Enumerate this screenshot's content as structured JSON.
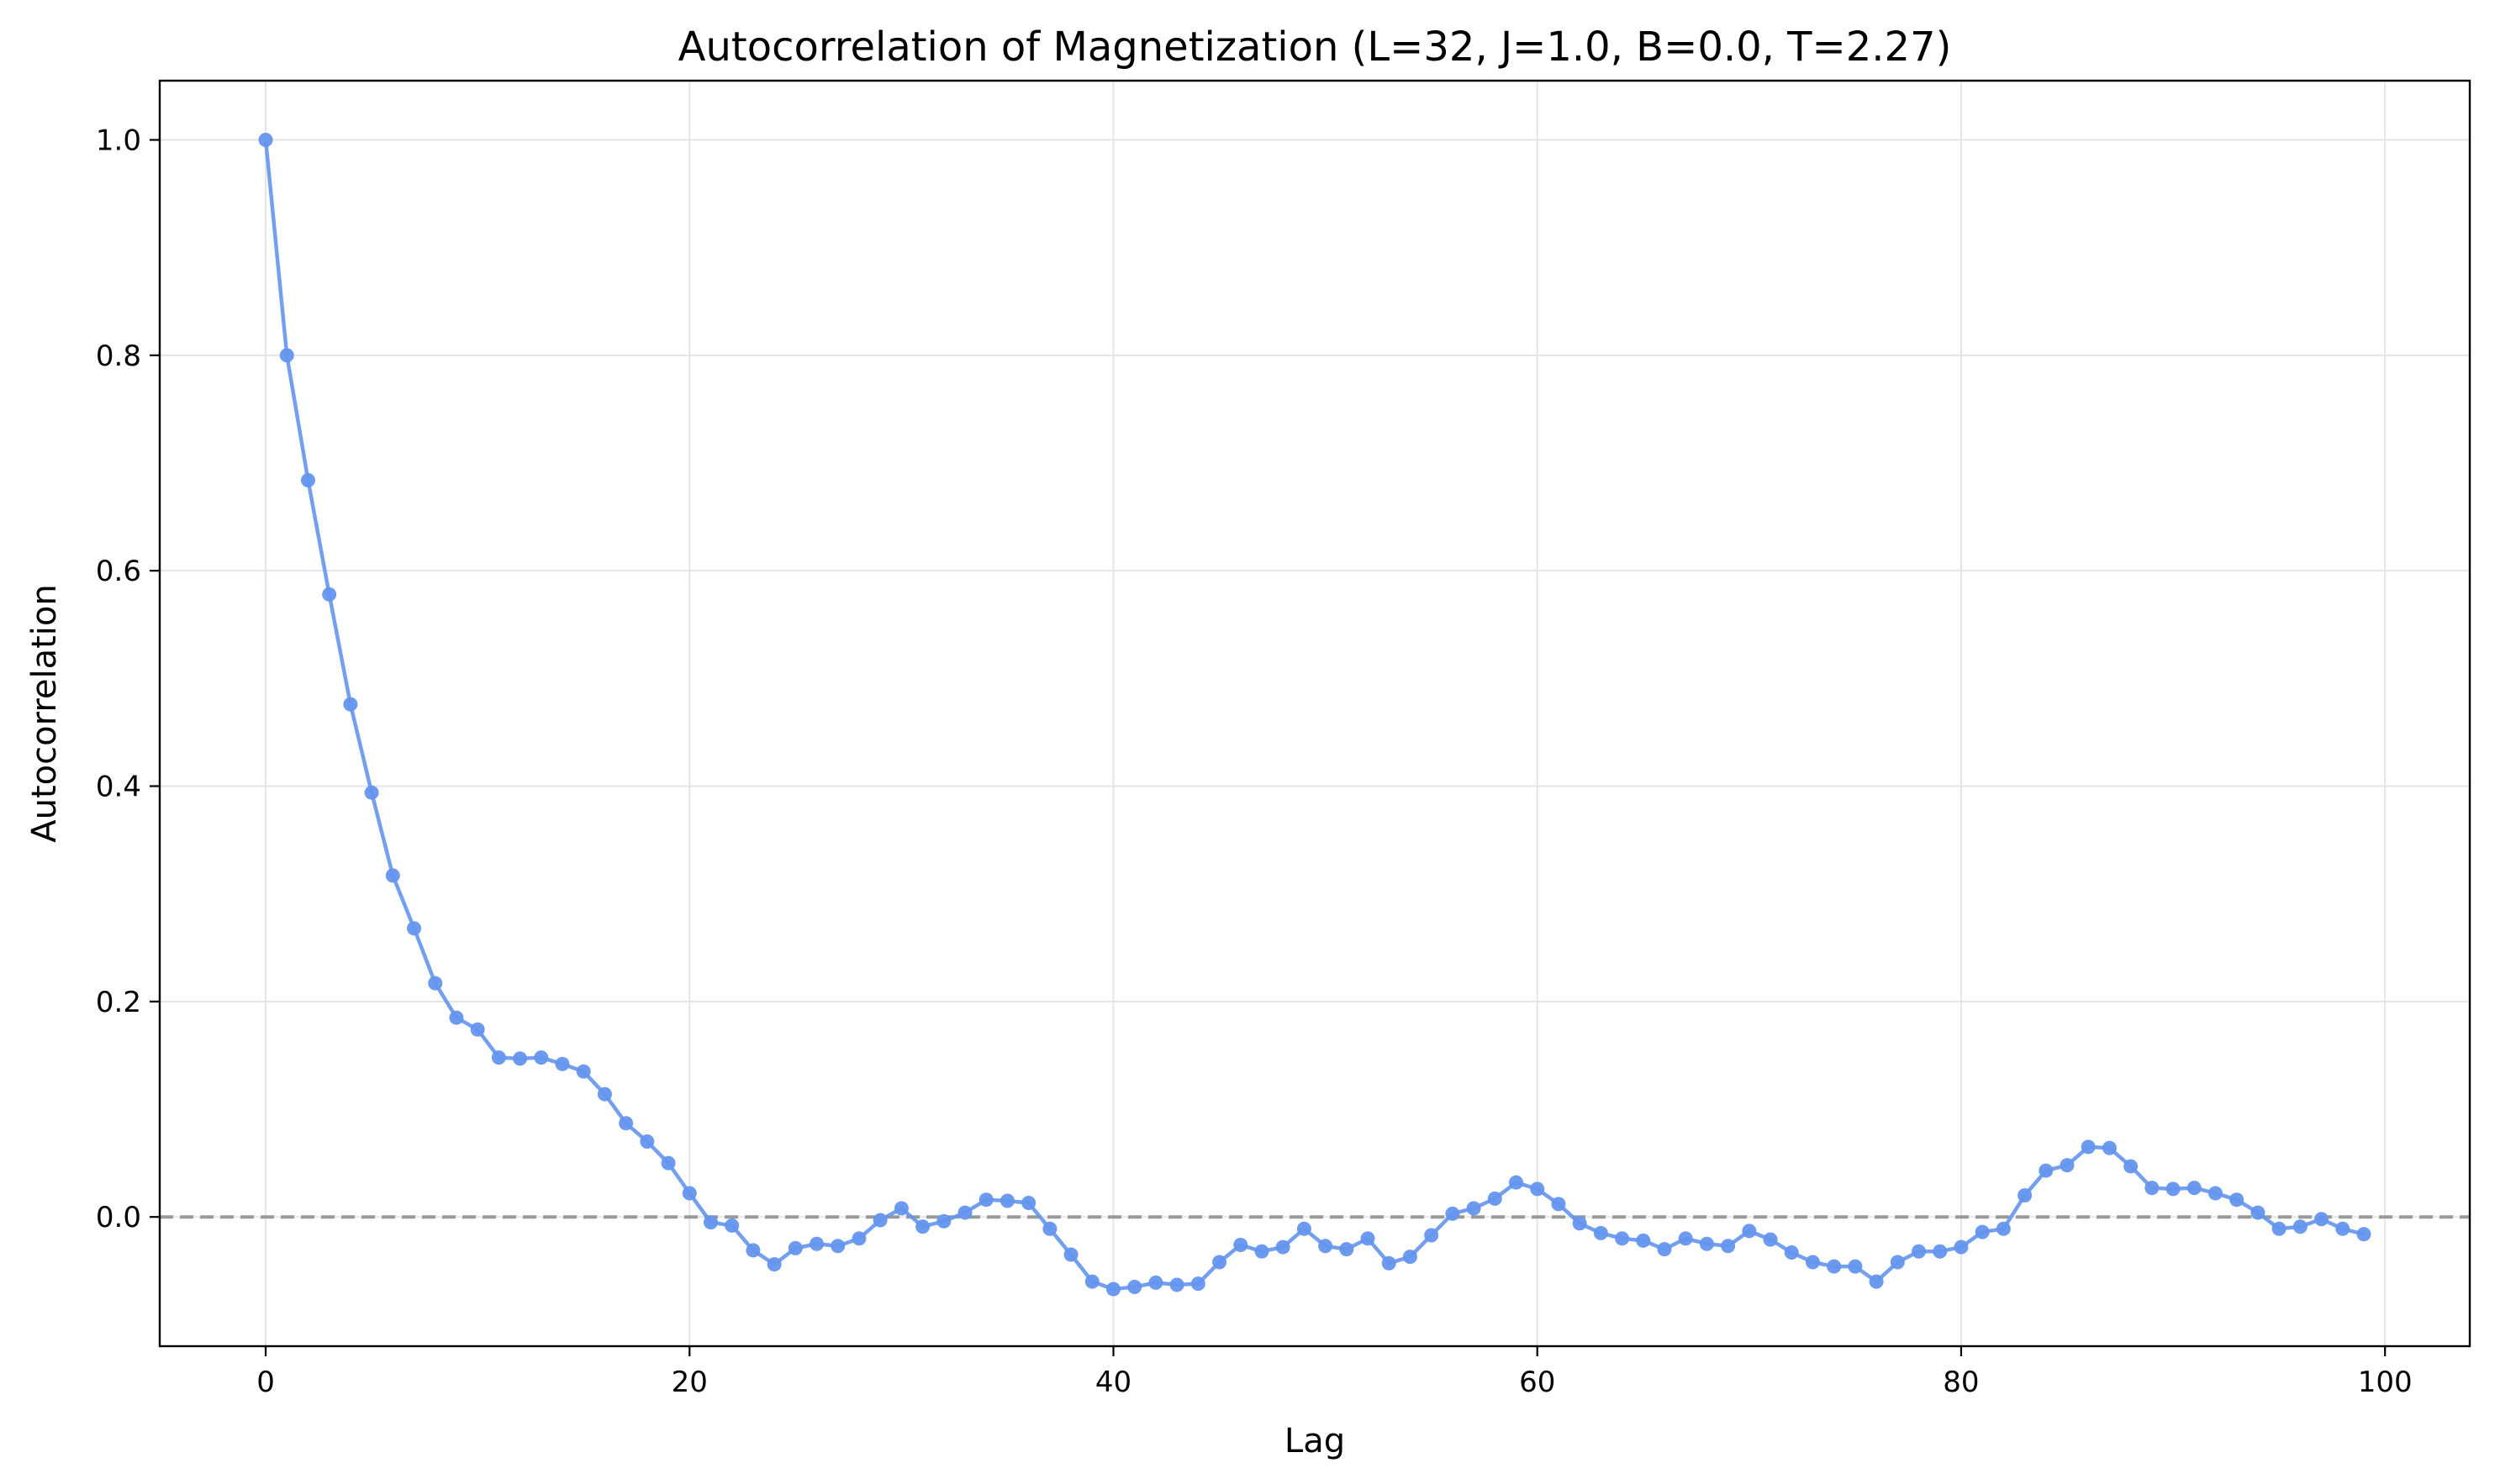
{
  "chart_data": {
    "type": "line",
    "title": "Autocorrelation of Magnetization (L=32, J=1.0, B=0.0, T=2.27)",
    "xlabel": "Lag",
    "ylabel": "Autocorrelation",
    "xlim": [
      -5,
      104
    ],
    "ylim": [
      -0.12,
      1.055
    ],
    "xticks": [
      0,
      20,
      40,
      60,
      80,
      100
    ],
    "xtick_labels": [
      "0",
      "20",
      "40",
      "60",
      "80",
      "100"
    ],
    "yticks": [
      0.0,
      0.2,
      0.4,
      0.6,
      0.8,
      1.0
    ],
    "ytick_labels": [
      "0.0",
      "0.2",
      "0.4",
      "0.6",
      "0.8",
      "1.0"
    ],
    "grid": true,
    "reference_line": {
      "y": 0.0,
      "style": "dashed",
      "color": "#999999"
    },
    "series": [
      {
        "color": "#6495ED",
        "marker": "circle",
        "x": [
          0,
          1,
          2,
          3,
          4,
          5,
          6,
          7,
          8,
          9,
          10,
          11,
          12,
          13,
          14,
          15,
          16,
          17,
          18,
          19,
          20,
          21,
          22,
          23,
          24,
          25,
          26,
          27,
          28,
          29,
          30,
          31,
          32,
          33,
          34,
          35,
          36,
          37,
          38,
          39,
          40,
          41,
          42,
          43,
          44,
          45,
          46,
          47,
          48,
          49,
          50,
          51,
          52,
          53,
          54,
          55,
          56,
          57,
          58,
          59,
          60,
          61,
          62,
          63,
          64,
          65,
          66,
          67,
          68,
          69,
          70,
          71,
          72,
          73,
          74,
          75,
          76,
          77,
          78,
          79,
          80,
          81,
          82,
          83,
          84,
          85,
          86,
          87,
          88,
          89,
          90,
          91,
          92,
          93,
          94,
          95,
          96,
          97,
          98,
          99
        ],
        "values": [
          1.0,
          0.8,
          0.684,
          0.578,
          0.476,
          0.394,
          0.317,
          0.268,
          0.217,
          0.185,
          0.174,
          0.148,
          0.147,
          0.148,
          0.142,
          0.135,
          0.114,
          0.087,
          0.07,
          0.05,
          0.022,
          -0.005,
          -0.008,
          -0.031,
          -0.044,
          -0.029,
          -0.025,
          -0.027,
          -0.02,
          -0.003,
          0.008,
          -0.009,
          -0.004,
          0.004,
          0.016,
          0.015,
          0.013,
          -0.011,
          -0.035,
          -0.06,
          -0.067,
          -0.065,
          -0.061,
          -0.063,
          -0.062,
          -0.042,
          -0.026,
          -0.032,
          -0.028,
          -0.011,
          -0.027,
          -0.03,
          -0.02,
          -0.043,
          -0.037,
          -0.017,
          0.003,
          0.008,
          0.017,
          0.032,
          0.026,
          0.012,
          -0.006,
          -0.015,
          -0.02,
          -0.022,
          -0.03,
          -0.02,
          -0.025,
          -0.027,
          -0.013,
          -0.021,
          -0.033,
          -0.042,
          -0.046,
          -0.046,
          -0.06,
          -0.042,
          -0.032,
          -0.032,
          -0.028,
          -0.014,
          -0.011,
          0.02,
          0.043,
          0.048,
          0.065,
          0.064,
          0.047,
          0.027,
          0.026,
          0.027,
          0.022,
          0.016,
          0.004,
          -0.011,
          -0.009,
          -0.002,
          -0.011,
          -0.016
        ]
      }
    ]
  }
}
